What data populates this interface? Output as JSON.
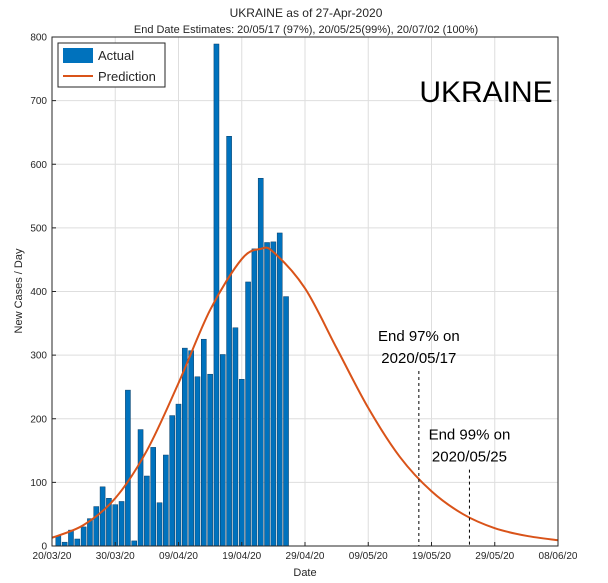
{
  "chart_data": {
    "type": "bar",
    "title": "UKRAINE as of 27-Apr-2020",
    "subtitle": "End Date Estimates: 20/05/17 (97%), 20/05/25(99%), 20/07/02 (100%)",
    "xlabel": "Date",
    "ylabel": "New Cases / Day",
    "ylim": [
      0,
      800
    ],
    "yticks": [
      "0",
      "100",
      "200",
      "300",
      "400",
      "500",
      "600",
      "700",
      "800"
    ],
    "x_range": [
      "2020-03-20",
      "2020-06-08"
    ],
    "xticks": [
      {
        "date": "2020-03-20",
        "label": "20/03/20"
      },
      {
        "date": "2020-03-30",
        "label": "30/03/20"
      },
      {
        "date": "2020-04-09",
        "label": "09/04/20"
      },
      {
        "date": "2020-04-19",
        "label": "19/04/20"
      },
      {
        "date": "2020-04-29",
        "label": "29/04/20"
      },
      {
        "date": "2020-05-09",
        "label": "09/05/20"
      },
      {
        "date": "2020-05-19",
        "label": "19/05/20"
      },
      {
        "date": "2020-05-29",
        "label": "29/05/20"
      },
      {
        "date": "2020-06-08",
        "label": "08/06/20"
      }
    ],
    "grid": true,
    "legend_position": "top-left",
    "series": [
      {
        "name": "Actual",
        "type": "bar",
        "color": "#0072BD",
        "points": [
          {
            "x": "2020-03-21",
            "y": 16
          },
          {
            "x": "2020-03-22",
            "y": 6
          },
          {
            "x": "2020-03-23",
            "y": 25
          },
          {
            "x": "2020-03-24",
            "y": 11
          },
          {
            "x": "2020-03-25",
            "y": 30
          },
          {
            "x": "2020-03-26",
            "y": 43
          },
          {
            "x": "2020-03-27",
            "y": 62
          },
          {
            "x": "2020-03-28",
            "y": 93
          },
          {
            "x": "2020-03-29",
            "y": 75
          },
          {
            "x": "2020-03-30",
            "y": 65
          },
          {
            "x": "2020-03-31",
            "y": 70
          },
          {
            "x": "2020-04-01",
            "y": 245
          },
          {
            "x": "2020-04-02",
            "y": 8
          },
          {
            "x": "2020-04-03",
            "y": 183
          },
          {
            "x": "2020-04-04",
            "y": 110
          },
          {
            "x": "2020-04-05",
            "y": 155
          },
          {
            "x": "2020-04-06",
            "y": 68
          },
          {
            "x": "2020-04-07",
            "y": 143
          },
          {
            "x": "2020-04-08",
            "y": 205
          },
          {
            "x": "2020-04-09",
            "y": 223
          },
          {
            "x": "2020-04-10",
            "y": 311
          },
          {
            "x": "2020-04-11",
            "y": 307
          },
          {
            "x": "2020-04-12",
            "y": 266
          },
          {
            "x": "2020-04-13",
            "y": 325
          },
          {
            "x": "2020-04-14",
            "y": 270
          },
          {
            "x": "2020-04-15",
            "y": 789
          },
          {
            "x": "2020-04-16",
            "y": 301
          },
          {
            "x": "2020-04-17",
            "y": 644
          },
          {
            "x": "2020-04-18",
            "y": 343
          },
          {
            "x": "2020-04-19",
            "y": 262
          },
          {
            "x": "2020-04-20",
            "y": 415
          },
          {
            "x": "2020-04-21",
            "y": 467
          },
          {
            "x": "2020-04-22",
            "y": 578
          },
          {
            "x": "2020-04-23",
            "y": 477
          },
          {
            "x": "2020-04-24",
            "y": 478
          },
          {
            "x": "2020-04-25",
            "y": 492
          },
          {
            "x": "2020-04-26",
            "y": 392
          }
        ]
      },
      {
        "name": "Prediction",
        "type": "line",
        "color": "#D95319",
        "points": [
          {
            "x": "2020-03-20",
            "y": 13
          },
          {
            "x": "2020-03-25",
            "y": 33
          },
          {
            "x": "2020-03-30",
            "y": 75
          },
          {
            "x": "2020-04-04",
            "y": 150
          },
          {
            "x": "2020-04-09",
            "y": 256
          },
          {
            "x": "2020-04-14",
            "y": 371
          },
          {
            "x": "2020-04-19",
            "y": 451
          },
          {
            "x": "2020-04-22",
            "y": 467
          },
          {
            "x": "2020-04-24",
            "y": 462
          },
          {
            "x": "2020-04-29",
            "y": 405
          },
          {
            "x": "2020-05-04",
            "y": 311
          },
          {
            "x": "2020-05-09",
            "y": 217
          },
          {
            "x": "2020-05-14",
            "y": 140
          },
          {
            "x": "2020-05-19",
            "y": 86
          },
          {
            "x": "2020-05-24",
            "y": 50
          },
          {
            "x": "2020-05-29",
            "y": 28
          },
          {
            "x": "2020-06-03",
            "y": 16
          },
          {
            "x": "2020-06-08",
            "y": 9
          }
        ]
      }
    ],
    "annotations": [
      {
        "name": "end-97",
        "lines": [
          "End 97% on",
          "2020/05/17"
        ],
        "x": "2020-05-17",
        "y_top": 275
      },
      {
        "name": "end-99",
        "lines": [
          "End 99% on",
          "2020/05/25"
        ],
        "x": "2020-05-25",
        "y_top": 120
      }
    ],
    "watermark": "UKRAINE"
  }
}
